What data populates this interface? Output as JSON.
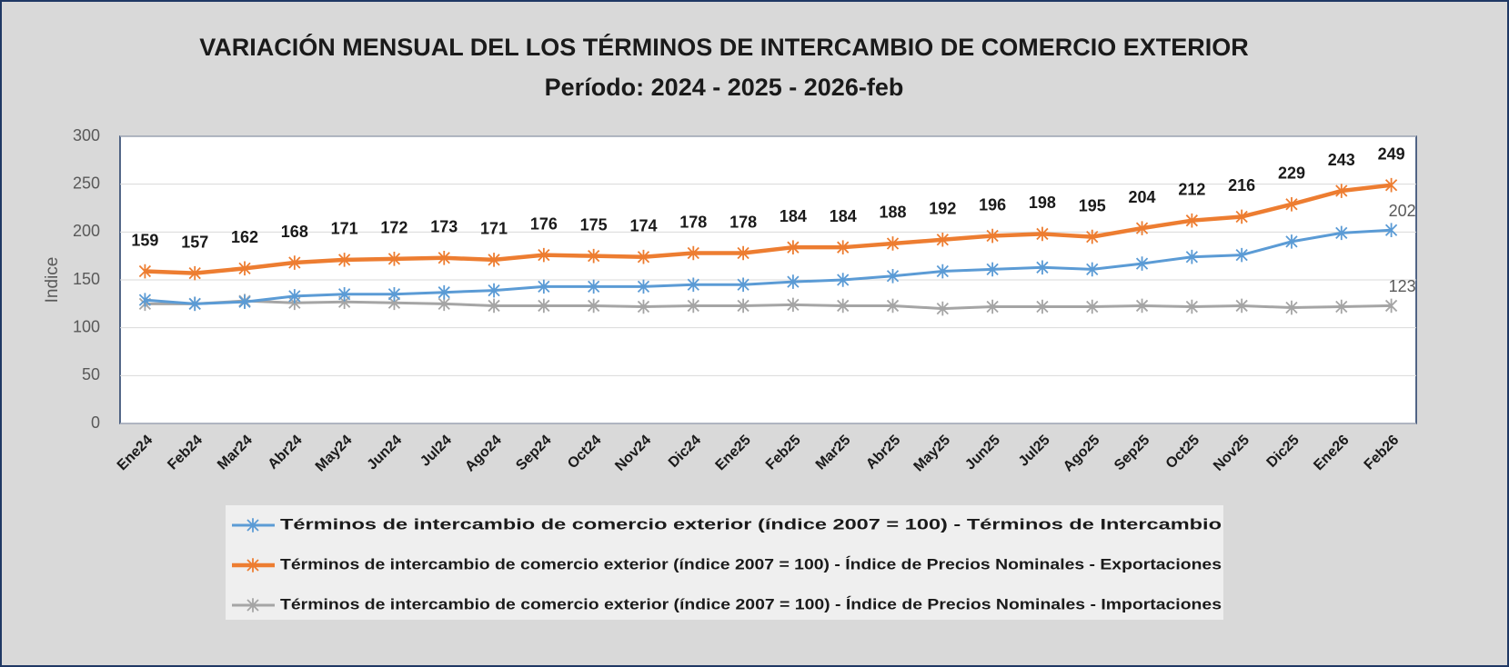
{
  "chart_data": {
    "type": "line",
    "title": "VARIACIÓN MENSUAL DEL LOS TÉRMINOS DE INTERCAMBIO DE COMERCIO EXTERIOR",
    "subtitle": "Período: 2024 - 2025 - 2026-feb",
    "y_label": "Indice",
    "categories": [
      "Ene24",
      "Feb24",
      "Mar24",
      "Abr24",
      "May24",
      "Jun24",
      "Jul24",
      "Ago24",
      "Sep24",
      "Oct24",
      "Nov24",
      "Dic24",
      "Ene25",
      "Feb25",
      "Mar25",
      "Abr25",
      "May25",
      "Jun25",
      "Jul25",
      "Ago25",
      "Sep25",
      "Oct25",
      "Nov25",
      "Dic25",
      "Ene26",
      "Feb26"
    ],
    "ylim": [
      0,
      300
    ],
    "yticks": [
      0,
      50,
      100,
      150,
      200,
      250,
      300
    ],
    "grid": true,
    "legend": "bottom",
    "series": [
      {
        "name": "Términos de intercambio de comercio exterior (índice 2007 = 100) - Términos de Intercambio",
        "color": "#5b9bd5",
        "data_labels": "last",
        "values": [
          129,
          125,
          127,
          133,
          135,
          135,
          137,
          139,
          143,
          143,
          143,
          145,
          145,
          148,
          150,
          154,
          159,
          161,
          163,
          161,
          167,
          174,
          176,
          190,
          199,
          202
        ]
      },
      {
        "name": "Términos de intercambio de comercio exterior (índice 2007 = 100) - Índice de Precios Nominales - Exportaciones",
        "color": "#ed7d31",
        "data_labels": "all",
        "values": [
          159,
          157,
          162,
          168,
          171,
          172,
          173,
          171,
          176,
          175,
          174,
          178,
          178,
          184,
          184,
          188,
          192,
          196,
          198,
          195,
          204,
          212,
          216,
          229,
          243,
          249
        ]
      },
      {
        "name": "Términos de intercambio de comercio exterior (índice 2007 = 100) - Índice de Precios Nominales - Importaciones",
        "color": "#a5a5a5",
        "data_labels": "last",
        "values": [
          125,
          125,
          128,
          126,
          127,
          126,
          125,
          123,
          123,
          123,
          122,
          123,
          123,
          124,
          123,
          123,
          120,
          122,
          122,
          122,
          123,
          122,
          123,
          121,
          122,
          123
        ]
      }
    ]
  }
}
